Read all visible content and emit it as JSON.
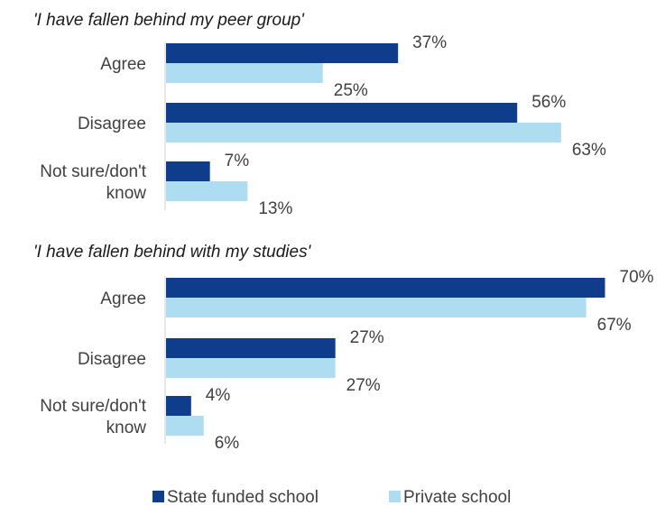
{
  "chart_data": {
    "type": "bar",
    "orientation": "horizontal",
    "value_unit": "%",
    "xlim": [
      0,
      70
    ],
    "grid": false,
    "legend_position": "bottom",
    "series": [
      {
        "name": "State funded school",
        "color": "#0f3d8c"
      },
      {
        "name": "Private school",
        "color": "#aedcf0"
      }
    ],
    "panels": [
      {
        "title": "'I have fallen behind my peer group'",
        "categories": [
          {
            "label_lines": [
              "Agree"
            ],
            "values": [
              37,
              25
            ]
          },
          {
            "label_lines": [
              "Disagree"
            ],
            "values": [
              56,
              63
            ]
          },
          {
            "label_lines": [
              "Not sure/don't",
              "know"
            ],
            "values": [
              7,
              13
            ]
          }
        ]
      },
      {
        "title": "'I have fallen behind with my studies'",
        "categories": [
          {
            "label_lines": [
              "Agree"
            ],
            "values": [
              70,
              67
            ]
          },
          {
            "label_lines": [
              "Disagree"
            ],
            "values": [
              27,
              27
            ]
          },
          {
            "label_lines": [
              "Not sure/don't",
              "know"
            ],
            "values": [
              4,
              6
            ]
          }
        ]
      }
    ]
  }
}
